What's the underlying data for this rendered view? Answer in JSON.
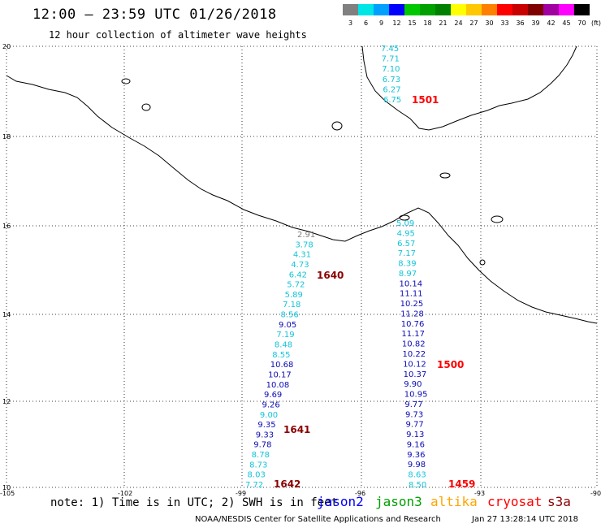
{
  "header": {
    "title": "12:00 – 23:59 UTC 01/26/2018",
    "subtitle": "12 hour collection of altimeter wave heights"
  },
  "legend": {
    "unit": "(ft)",
    "bins": [
      {
        "label": "3",
        "color": "#808080"
      },
      {
        "label": "6",
        "color": "#00e5e5"
      },
      {
        "label": "9",
        "color": "#00a0ff"
      },
      {
        "label": "12",
        "color": "#0000ff"
      },
      {
        "label": "15",
        "color": "#00c800"
      },
      {
        "label": "18",
        "color": "#00a000"
      },
      {
        "label": "21",
        "color": "#008000"
      },
      {
        "label": "24",
        "color": "#ffff00"
      },
      {
        "label": "27",
        "color": "#ffc800"
      },
      {
        "label": "30",
        "color": "#ff8000"
      },
      {
        "label": "33",
        "color": "#ff0000"
      },
      {
        "label": "36",
        "color": "#c80000"
      },
      {
        "label": "39",
        "color": "#800000"
      },
      {
        "label": "42",
        "color": "#a000a0"
      },
      {
        "label": "45",
        "color": "#ff00ff"
      },
      {
        "label": "70",
        "color": "#000000"
      }
    ]
  },
  "axes": {
    "lon_labels": [
      "-105",
      "-102",
      "-99",
      "-96",
      "-93",
      "-90"
    ],
    "lat_labels": [
      "20",
      "18",
      "16",
      "14",
      "12",
      "10"
    ]
  },
  "colors": {
    "cyan": "#13c4d8",
    "blue": "#0a0ab4",
    "red": "#ff0000",
    "darkred": "#8b0000"
  },
  "tracks": [
    {
      "name": "track-left",
      "time": "1640",
      "time_color": "darkred",
      "values": [
        {
          "v": "2.91",
          "c": "#808080"
        },
        {
          "v": "3.78",
          "c": "cyan"
        },
        {
          "v": "4.31",
          "c": "cyan"
        },
        {
          "v": "4.73",
          "c": "cyan"
        },
        {
          "v": "6.42",
          "c": "cyan"
        },
        {
          "v": "5.72",
          "c": "cyan"
        },
        {
          "v": "5.89",
          "c": "cyan"
        },
        {
          "v": "7.18",
          "c": "cyan"
        },
        {
          "v": "8.56",
          "c": "cyan"
        },
        {
          "v": "9.05",
          "c": "blue"
        },
        {
          "v": "7.19",
          "c": "cyan"
        },
        {
          "v": "8.48",
          "c": "cyan"
        },
        {
          "v": "8.55",
          "c": "cyan"
        },
        {
          "v": "10.68",
          "c": "blue"
        },
        {
          "v": "10.17",
          "c": "blue"
        },
        {
          "v": "10.08",
          "c": "blue"
        },
        {
          "v": "9.69",
          "c": "blue"
        },
        {
          "v": "9.26",
          "c": "blue"
        },
        {
          "v": "9.00",
          "c": "cyan"
        },
        {
          "v": "9.35",
          "c": "blue"
        },
        {
          "v": "9.33",
          "c": "blue"
        },
        {
          "v": "9.78",
          "c": "blue"
        },
        {
          "v": "8.78",
          "c": "cyan"
        },
        {
          "v": "8.73",
          "c": "cyan"
        },
        {
          "v": "8.03",
          "c": "cyan"
        },
        {
          "v": "7.72",
          "c": "cyan"
        }
      ]
    },
    {
      "name": "track-right",
      "time": "1500",
      "time_color": "red",
      "values": [
        {
          "v": "5.09",
          "c": "cyan"
        },
        {
          "v": "4.95",
          "c": "cyan"
        },
        {
          "v": "6.57",
          "c": "cyan"
        },
        {
          "v": "7.17",
          "c": "cyan"
        },
        {
          "v": "8.39",
          "c": "cyan"
        },
        {
          "v": "8.97",
          "c": "cyan"
        },
        {
          "v": "10.14",
          "c": "blue"
        },
        {
          "v": "11.11",
          "c": "blue"
        },
        {
          "v": "10.25",
          "c": "blue"
        },
        {
          "v": "11.28",
          "c": "blue"
        },
        {
          "v": "10.76",
          "c": "blue"
        },
        {
          "v": "11.17",
          "c": "blue"
        },
        {
          "v": "10.82",
          "c": "blue"
        },
        {
          "v": "10.22",
          "c": "blue"
        },
        {
          "v": "10.12",
          "c": "blue"
        },
        {
          "v": "10.37",
          "c": "blue"
        },
        {
          "v": "9.90",
          "c": "blue"
        },
        {
          "v": "10.95",
          "c": "blue"
        },
        {
          "v": "9.77",
          "c": "blue"
        },
        {
          "v": "9.73",
          "c": "blue"
        },
        {
          "v": "9.77",
          "c": "blue"
        },
        {
          "v": "9.13",
          "c": "blue"
        },
        {
          "v": "9.16",
          "c": "blue"
        },
        {
          "v": "9.36",
          "c": "blue"
        },
        {
          "v": "9.98",
          "c": "blue"
        },
        {
          "v": "8.63",
          "c": "cyan"
        },
        {
          "v": "8.50",
          "c": "cyan"
        }
      ]
    },
    {
      "name": "track-top",
      "time": "1501",
      "time_color": "red",
      "values": [
        {
          "v": "7.45",
          "c": "cyan"
        },
        {
          "v": "7.71",
          "c": "cyan"
        },
        {
          "v": "7.10",
          "c": "cyan"
        },
        {
          "v": "6.73",
          "c": "cyan"
        },
        {
          "v": "6.27",
          "c": "cyan"
        },
        {
          "v": "6.75",
          "c": "cyan"
        }
      ]
    }
  ],
  "extra_times": [
    {
      "t": "1641",
      "c": "darkred"
    },
    {
      "t": "1642",
      "c": "darkred"
    },
    {
      "t": "1459",
      "c": "red"
    }
  ],
  "footer": {
    "note": "note: 1) Time is in UTC; 2) SWH is in feet",
    "satellites": [
      {
        "name": "jason2",
        "color": "#0000ff"
      },
      {
        "name": "jason3",
        "color": "#00a000"
      },
      {
        "name": "altika",
        "color": "#ffa500"
      },
      {
        "name": "cryosat",
        "color": "#ff0000"
      },
      {
        "name": "s3a",
        "color": "#8b0000"
      }
    ],
    "credit": "NOAA/NESDIS Center for Satellite Applications and Research",
    "date": "Jan 27 13:28:14 UTC 2018"
  }
}
